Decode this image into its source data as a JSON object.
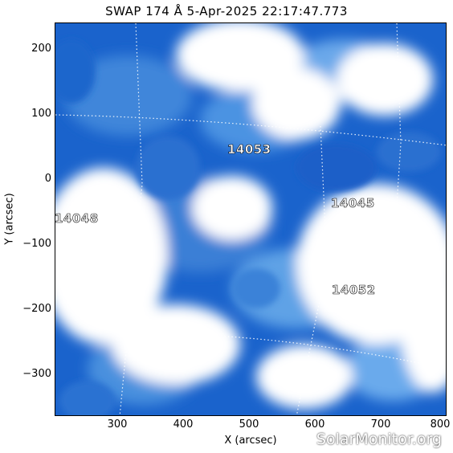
{
  "title": "SWAP 174 Å  5-Apr-2025 22:17:47.773",
  "axes": {
    "xlabel": "X (arcsec)",
    "ylabel": "Y (arcsec)",
    "xlim": [
      205,
      800
    ],
    "ylim": [
      -365,
      240
    ],
    "xticks": [
      "300",
      "400",
      "500",
      "600",
      "700",
      "800"
    ],
    "xtick_values": [
      300,
      400,
      500,
      600,
      700,
      800
    ],
    "yticks": [
      "200",
      "100",
      "0",
      "−100",
      "−200",
      "−300"
    ],
    "ytick_values": [
      200,
      100,
      0,
      -100,
      -200,
      -300
    ]
  },
  "active_regions": [
    {
      "label": "14053",
      "x": 505,
      "y": 45
    },
    {
      "label": "14045",
      "x": 670,
      "y": -35
    },
    {
      "label": "14048",
      "x": 240,
      "y": -60
    },
    {
      "label": "14052",
      "x": 670,
      "y": -170
    }
  ],
  "watermark": "SolarMonitor.org",
  "colors": {
    "deep_blue": "#1a5fc8",
    "mid_blue": "#5aa0e8",
    "white": "#ffffff"
  }
}
